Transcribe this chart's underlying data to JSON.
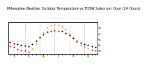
{
  "title": "Milwaukee Weather Outdoor Temperature vs THSW Index per Hour (24 Hours)",
  "title_fontsize": 3.5,
  "background_color": "#ffffff",
  "grid_color": "#888888",
  "hours": [
    0,
    1,
    2,
    3,
    4,
    5,
    6,
    7,
    8,
    9,
    10,
    11,
    12,
    13,
    14,
    15,
    16,
    17,
    18,
    19,
    20,
    21,
    22,
    23
  ],
  "temp": [
    55,
    53,
    51,
    50,
    49,
    48,
    52,
    58,
    64,
    69,
    73,
    75,
    76,
    75,
    74,
    71,
    67,
    62,
    57,
    54,
    52,
    50,
    48,
    47
  ],
  "thsw": [
    48,
    46,
    43,
    41,
    40,
    38,
    44,
    53,
    63,
    72,
    80,
    84,
    86,
    85,
    83,
    78,
    70,
    62,
    55,
    50,
    47,
    44,
    42,
    40
  ],
  "temp_color": "#000000",
  "thsw_color": "#ff8800",
  "highlight_color": "#ff0000",
  "temp_highlight_indices": [
    11,
    12,
    13
  ],
  "thsw_highlight_indices": [
    0,
    1,
    2,
    3,
    4,
    5,
    22,
    23
  ],
  "ylim": [
    35,
    90
  ],
  "yticks_right": [
    40,
    50,
    60,
    70,
    80
  ],
  "ytick_labels_right": [
    "4.",
    "5.",
    "6.",
    "7.",
    "8."
  ],
  "marker_size": 1.5,
  "grid_x_positions": [
    4,
    8,
    12,
    16,
    20
  ],
  "dpi": 100
}
